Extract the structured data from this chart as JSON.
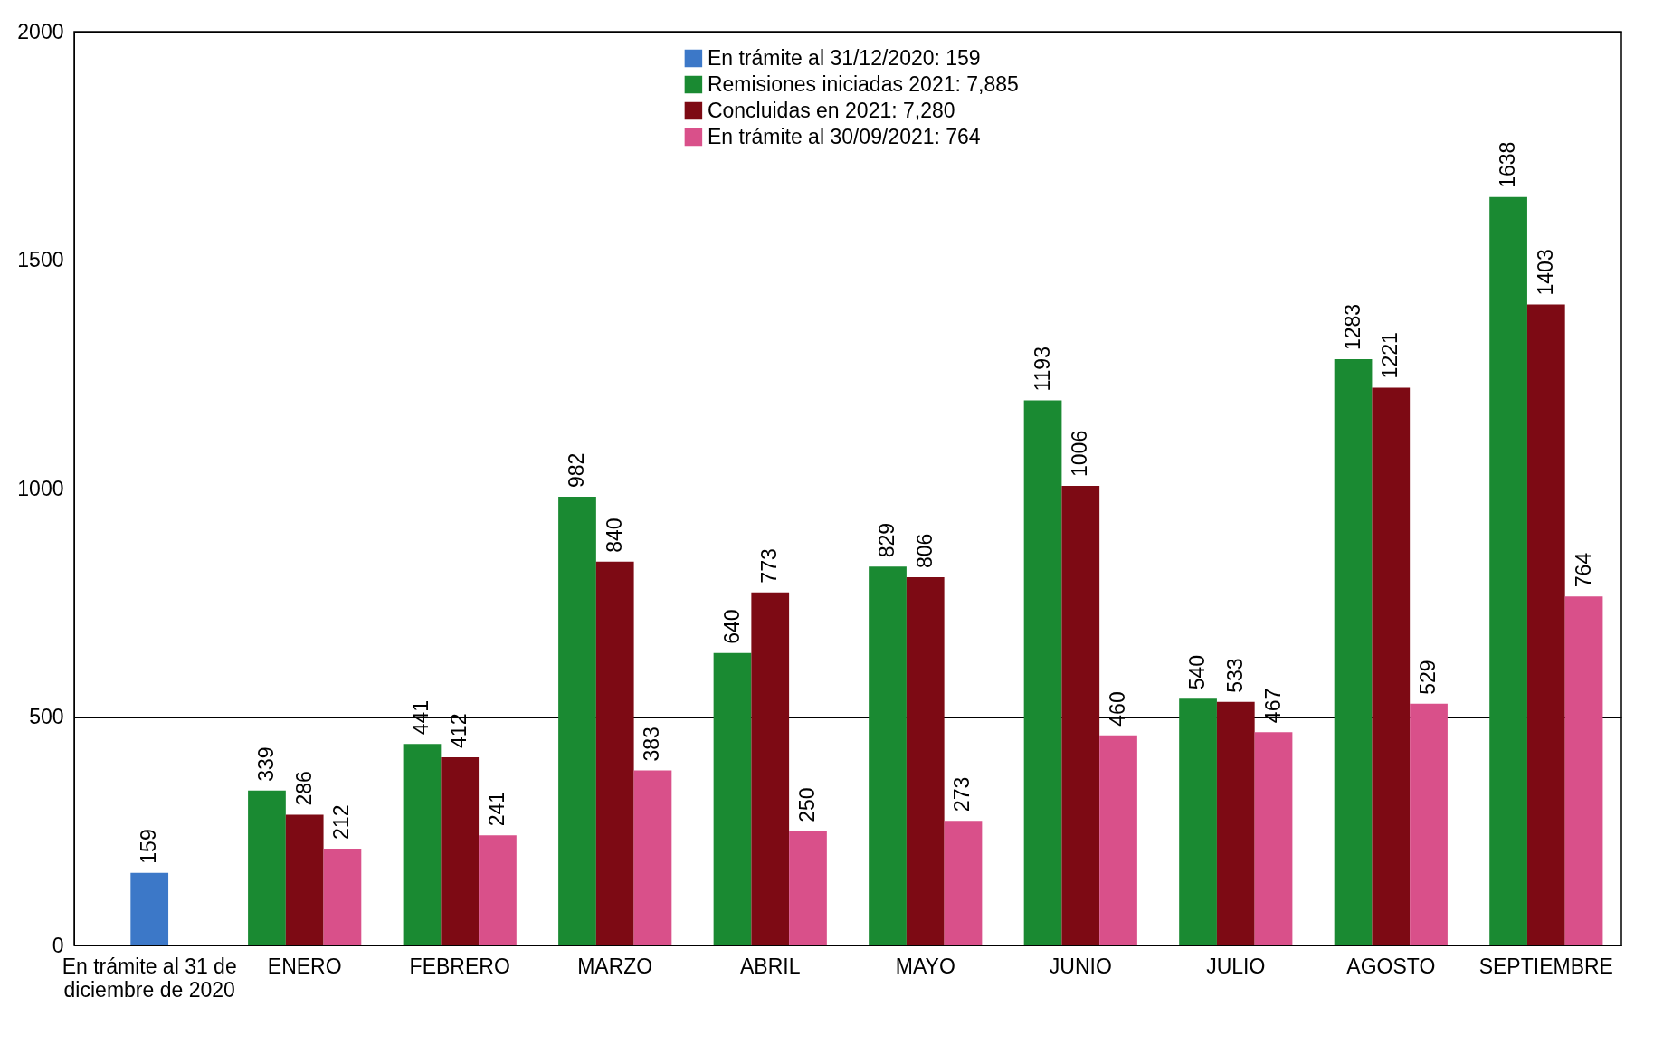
{
  "chart_data": {
    "type": "bar",
    "categories": [
      "En trámite al 31 de diciembre de 2020",
      "ENERO",
      "FEBRERO",
      "MARZO",
      "ABRIL",
      "MAYO",
      "JUNIO",
      "JULIO",
      "AGOSTO",
      "SEPTIEMBRE"
    ],
    "series": [
      {
        "name": "En trámite al 31/12/2020: 159",
        "color": "#3c78c8",
        "values": [
          159,
          null,
          null,
          null,
          null,
          null,
          null,
          null,
          null,
          null
        ]
      },
      {
        "name": "Remisiones iniciadas 2021: 7,885",
        "color": "#1a8a32",
        "values": [
          null,
          339,
          441,
          982,
          640,
          829,
          1193,
          540,
          1283,
          1638
        ]
      },
      {
        "name": "Concluidas en 2021: 7,280",
        "color": "#7d0a14",
        "values": [
          null,
          286,
          412,
          840,
          773,
          806,
          1006,
          533,
          1221,
          1403
        ]
      },
      {
        "name": "En trámite al 30/09/2021: 764",
        "color": "#d9508a",
        "values": [
          null,
          212,
          241,
          383,
          250,
          273,
          460,
          467,
          529,
          764
        ]
      }
    ],
    "ylim": [
      0,
      2000
    ],
    "yticks": [
      0,
      500,
      1000,
      1500,
      2000
    ],
    "grid": "y",
    "legend": "top",
    "data_labels": true
  }
}
